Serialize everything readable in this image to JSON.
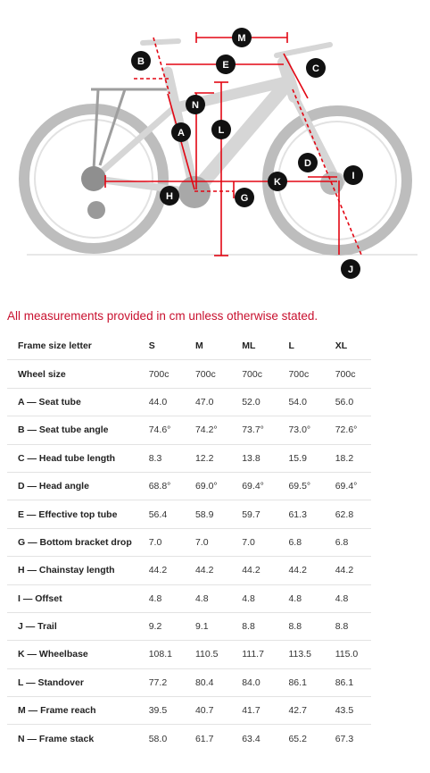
{
  "diagram": {
    "markers": [
      "M",
      "B",
      "E",
      "C",
      "N",
      "A",
      "L",
      "D",
      "I",
      "K",
      "H",
      "G",
      "J"
    ],
    "accent_color": "#e30613",
    "marker_color": "#111111"
  },
  "note": "All measurements provided in cm unless otherwise stated.",
  "table": {
    "header": [
      "Frame size letter",
      "S",
      "M",
      "ML",
      "L",
      "XL"
    ],
    "rows": [
      {
        "label": "Wheel size",
        "values": [
          "700c",
          "700c",
          "700c",
          "700c",
          "700c"
        ]
      },
      {
        "label": "A — Seat tube",
        "values": [
          "44.0",
          "47.0",
          "52.0",
          "54.0",
          "56.0"
        ]
      },
      {
        "label": "B — Seat tube angle",
        "values": [
          "74.6°",
          "74.2°",
          "73.7°",
          "73.0°",
          "72.6°"
        ]
      },
      {
        "label": "C — Head tube length",
        "values": [
          "8.3",
          "12.2",
          "13.8",
          "15.9",
          "18.2"
        ]
      },
      {
        "label": "D — Head angle",
        "values": [
          "68.8°",
          "69.0°",
          "69.4°",
          "69.5°",
          "69.4°"
        ]
      },
      {
        "label": "E — Effective top tube",
        "values": [
          "56.4",
          "58.9",
          "59.7",
          "61.3",
          "62.8"
        ]
      },
      {
        "label": "G — Bottom bracket drop",
        "values": [
          "7.0",
          "7.0",
          "7.0",
          "6.8",
          "6.8"
        ]
      },
      {
        "label": "H — Chainstay length",
        "values": [
          "44.2",
          "44.2",
          "44.2",
          "44.2",
          "44.2"
        ]
      },
      {
        "label": "I — Offset",
        "values": [
          "4.8",
          "4.8",
          "4.8",
          "4.8",
          "4.8"
        ]
      },
      {
        "label": "J — Trail",
        "values": [
          "9.2",
          "9.1",
          "8.8",
          "8.8",
          "8.8"
        ]
      },
      {
        "label": "K — Wheelbase",
        "values": [
          "108.1",
          "110.5",
          "111.7",
          "113.5",
          "115.0"
        ]
      },
      {
        "label": "L — Standover",
        "values": [
          "77.2",
          "80.4",
          "84.0",
          "86.1",
          "86.1"
        ]
      },
      {
        "label": "M — Frame reach",
        "values": [
          "39.5",
          "40.7",
          "41.7",
          "42.7",
          "43.5"
        ]
      },
      {
        "label": "N — Frame stack",
        "values": [
          "58.0",
          "61.7",
          "63.4",
          "65.2",
          "67.3"
        ]
      }
    ]
  }
}
